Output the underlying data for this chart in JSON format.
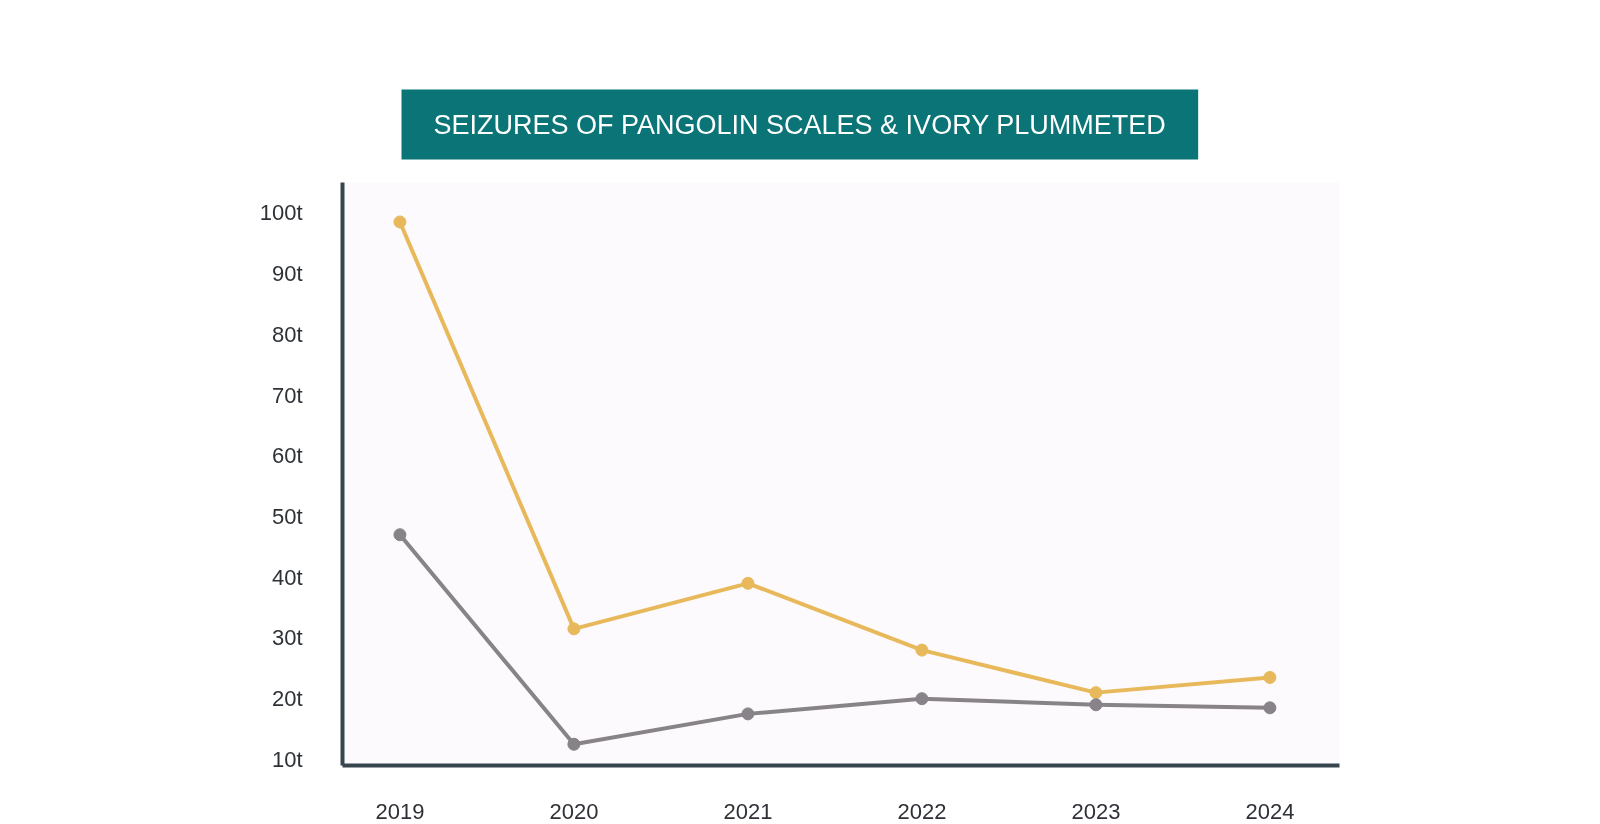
{
  "chart_data": {
    "type": "line",
    "title": "SEIZURES OF PANGOLIN SCALES & IVORY PLUMMETED",
    "categories": [
      "2019",
      "2020",
      "2021",
      "2022",
      "2023",
      "2024"
    ],
    "series": [
      {
        "color": "#e8b95b",
        "values": [
          98.5,
          31.5,
          39,
          28,
          21,
          23.5
        ]
      },
      {
        "color": "#878388",
        "values": [
          47,
          12.5,
          17.5,
          20,
          19,
          18.5
        ]
      }
    ],
    "ylim": [
      9,
      105
    ],
    "yticks": [
      {
        "value": 10,
        "label": "10t"
      },
      {
        "value": 20,
        "label": "20t"
      },
      {
        "value": 30,
        "label": "30t"
      },
      {
        "value": 40,
        "label": "40t"
      },
      {
        "value": 50,
        "label": "50t"
      },
      {
        "value": 60,
        "label": "60t"
      },
      {
        "value": 70,
        "label": "70t"
      },
      {
        "value": 80,
        "label": "80t"
      },
      {
        "value": 90,
        "label": "90t"
      },
      {
        "value": 100,
        "label": "100t"
      }
    ],
    "marker": "circle",
    "grid": false
  }
}
